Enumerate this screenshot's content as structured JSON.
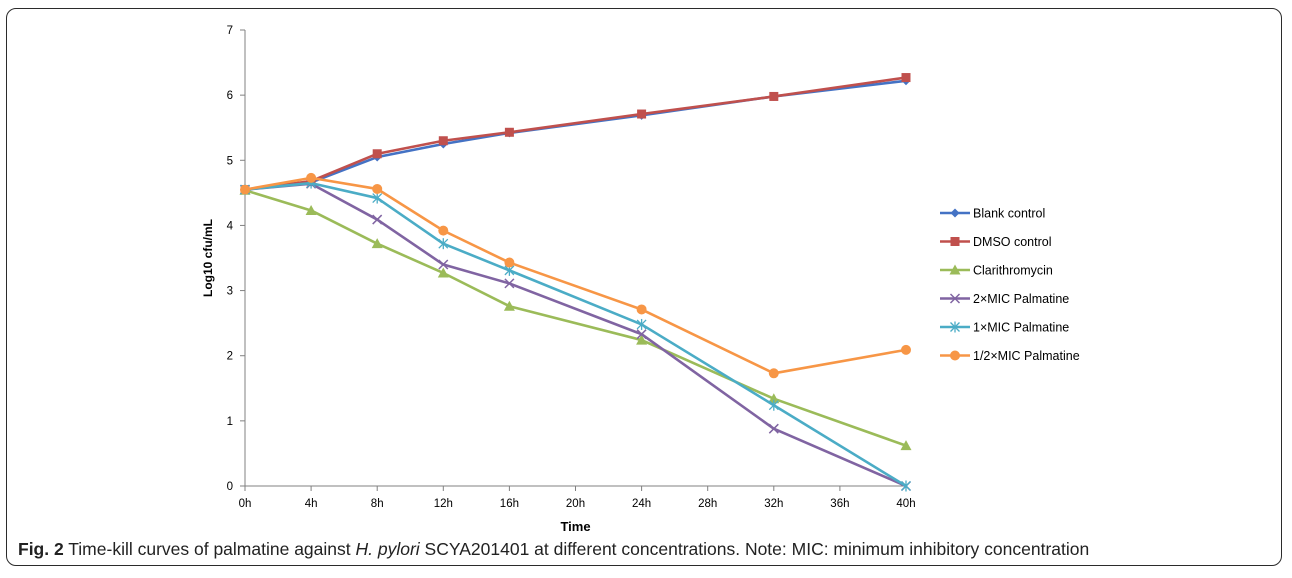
{
  "caption": {
    "label": "Fig. 2",
    "text_before": " Time-kill curves of palmatine against ",
    "italic": "H. pylori",
    "text_after": " SCYA201401 at different concentrations. Note: MIC: minimum inhibitory concentration"
  },
  "chart_data": {
    "type": "line",
    "title": "",
    "xlabel": "Time",
    "ylabel": "Log10 cfu/mL",
    "categories": [
      "0h",
      "4h",
      "8h",
      "12h",
      "16h",
      "20h",
      "24h",
      "28h",
      "32h",
      "36h",
      "40h"
    ],
    "ylim": [
      0,
      7
    ],
    "yticks": [
      "0",
      "1",
      "2",
      "3",
      "4",
      "5",
      "6",
      "7"
    ],
    "grid": false,
    "legend_position": "right",
    "series": [
      {
        "name": "Blank control",
        "marker": "diamond",
        "color": "#4472C4",
        "points": [
          [
            0,
            4.55
          ],
          [
            4,
            4.66
          ],
          [
            8,
            5.05
          ],
          [
            12,
            5.25
          ],
          [
            16,
            5.42
          ],
          [
            24,
            5.69
          ],
          [
            32,
            5.98
          ],
          [
            40,
            6.22
          ]
        ]
      },
      {
        "name": "DMSO control",
        "marker": "square",
        "color": "#C0504D",
        "points": [
          [
            0,
            4.55
          ],
          [
            4,
            4.68
          ],
          [
            8,
            5.1
          ],
          [
            12,
            5.3
          ],
          [
            16,
            5.43
          ],
          [
            24,
            5.71
          ],
          [
            32,
            5.98
          ],
          [
            40,
            6.27
          ]
        ]
      },
      {
        "name": "Clarithromycin",
        "marker": "triangle",
        "color": "#9BBB59",
        "points": [
          [
            0,
            4.54
          ],
          [
            4,
            4.23
          ],
          [
            8,
            3.72
          ],
          [
            12,
            3.27
          ],
          [
            16,
            2.76
          ],
          [
            24,
            2.24
          ],
          [
            32,
            1.34
          ],
          [
            40,
            0.62
          ]
        ]
      },
      {
        "name": "2×MIC Palmatine",
        "marker": "x",
        "color": "#8064A2",
        "points": [
          [
            0,
            4.55
          ],
          [
            4,
            4.64
          ],
          [
            8,
            4.09
          ],
          [
            12,
            3.4
          ],
          [
            16,
            3.11
          ],
          [
            24,
            2.33
          ],
          [
            32,
            0.88
          ],
          [
            40,
            0.0
          ]
        ]
      },
      {
        "name": "1×MIC Palmatine",
        "marker": "star",
        "color": "#4BACC6",
        "points": [
          [
            0,
            4.55
          ],
          [
            4,
            4.65
          ],
          [
            8,
            4.42
          ],
          [
            12,
            3.72
          ],
          [
            16,
            3.31
          ],
          [
            24,
            2.48
          ],
          [
            32,
            1.24
          ],
          [
            40,
            0.0
          ]
        ]
      },
      {
        "name": "1/2×MIC Palmatine",
        "marker": "circle",
        "color": "#F79646",
        "points": [
          [
            0,
            4.55
          ],
          [
            4,
            4.73
          ],
          [
            8,
            4.56
          ],
          [
            12,
            3.92
          ],
          [
            16,
            3.43
          ],
          [
            24,
            2.71
          ],
          [
            32,
            1.73
          ],
          [
            40,
            2.09
          ]
        ]
      }
    ]
  }
}
